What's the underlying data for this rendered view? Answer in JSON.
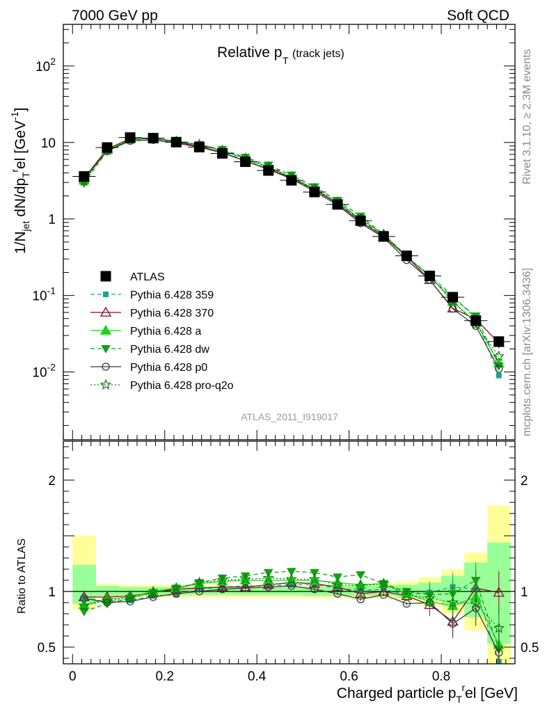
{
  "header": {
    "left": "7000 GeV pp",
    "right": "Soft QCD"
  },
  "plot_title_main": "Relative p",
  "plot_title_sub": "T",
  "plot_title_extra": "(track jets)",
  "watermark": "ATLAS_2011_I919017",
  "side_right_top": "Rivet 3.1.10, ≥ 2.3M events",
  "side_right_bottom": "mcplots.cern.ch [arXiv:1306.3436]",
  "ylabel_top": "1/N_jet dN/dp_T^rel [GeV^-1]",
  "ylabel_bottom": "Ratio to ATLAS",
  "xlabel": "Charged particle p_T^rel [GeV]",
  "colors": {
    "atlas": "#000000",
    "p359": "#1aa58c",
    "p370": "#7a1020",
    "pa": "#1cd41c",
    "pdw": "#12a012",
    "pp0": "#3a3a3a",
    "pq2o": "#0d7d0d",
    "band_yellow": "#ffff99",
    "band_green": "#99ff99"
  },
  "chart_data": {
    "type": "line",
    "x": [
      0.025,
      0.075,
      0.125,
      0.175,
      0.225,
      0.275,
      0.325,
      0.375,
      0.425,
      0.475,
      0.525,
      0.575,
      0.625,
      0.675,
      0.725,
      0.775,
      0.825,
      0.875,
      0.925
    ],
    "xlim": [
      -0.02,
      0.96
    ],
    "xticks": [
      "0",
      "0.2",
      "0.4",
      "0.6",
      "0.8"
    ],
    "top": {
      "yscale": "log",
      "ylim": [
        0.0013,
        350
      ],
      "yticks": [
        "10^-2",
        "10^-1",
        "1",
        "10",
        "10^2"
      ],
      "series": [
        {
          "name": "ATLAS",
          "key": "atlas",
          "values": [
            3.6,
            8.6,
            11.6,
            11.4,
            10.1,
            8.7,
            7.2,
            5.6,
            4.3,
            3.2,
            2.25,
            1.55,
            0.95,
            0.59,
            0.33,
            0.18,
            0.095,
            0.047,
            0.025
          ]
        },
        {
          "name": "Pythia 6.428 359",
          "key": "p359",
          "values": [
            3.3,
            7.8,
            10.7,
            10.9,
            9.9,
            8.9,
            7.4,
            5.9,
            4.5,
            3.35,
            2.38,
            1.6,
            0.97,
            0.6,
            0.32,
            0.185,
            0.099,
            0.05,
            0.009
          ]
        },
        {
          "name": "Pythia 6.428 370",
          "key": "p370",
          "values": [
            3.4,
            8.2,
            11.2,
            11.3,
            10.2,
            8.9,
            7.4,
            5.7,
            4.5,
            3.45,
            2.43,
            1.58,
            0.93,
            0.59,
            0.32,
            0.16,
            0.068,
            0.049,
            0.024
          ]
        },
        {
          "name": "Pythia 6.428 a",
          "key": "pa",
          "values": [
            3.2,
            8.0,
            11.0,
            11.4,
            10.4,
            9.3,
            7.8,
            6.15,
            4.75,
            3.5,
            2.48,
            1.67,
            1.0,
            0.63,
            0.32,
            0.18,
            0.083,
            0.045,
            0.013
          ]
        },
        {
          "name": "Pythia 6.428 dw",
          "key": "pdw",
          "values": [
            2.95,
            7.7,
            10.9,
            11.4,
            10.4,
            9.4,
            8.1,
            6.4,
            5.05,
            3.75,
            2.63,
            1.75,
            1.09,
            0.63,
            0.33,
            0.175,
            0.093,
            0.054,
            0.012
          ]
        },
        {
          "name": "Pythia 6.428 p0",
          "key": "pp0",
          "values": [
            3.4,
            7.7,
            10.5,
            10.8,
            9.8,
            8.7,
            7.3,
            5.75,
            4.45,
            3.35,
            2.3,
            1.52,
            0.88,
            0.57,
            0.29,
            0.16,
            0.067,
            0.04,
            0.011
          ]
        },
        {
          "name": "Pythia 6.428 pro-q2o",
          "key": "pq2o",
          "values": [
            3.1,
            7.9,
            10.9,
            11.3,
            10.3,
            9.4,
            7.9,
            6.2,
            4.8,
            3.55,
            2.5,
            1.64,
            1.0,
            0.63,
            0.32,
            0.18,
            0.085,
            0.042,
            0.016
          ]
        }
      ]
    },
    "bottom": {
      "yscale": "linear",
      "ylim": [
        0.35,
        2.35
      ],
      "yticks": [
        "0.5",
        "1",
        "2"
      ],
      "band_yellow": [
        [
          0.84,
          1.5
        ],
        [
          0.94,
          1.07
        ],
        [
          0.94,
          1.06
        ],
        [
          0.94,
          1.06
        ],
        [
          0.95,
          1.06
        ],
        [
          0.95,
          1.06
        ],
        [
          0.95,
          1.06
        ],
        [
          0.95,
          1.05
        ],
        [
          0.95,
          1.05
        ],
        [
          0.95,
          1.05
        ],
        [
          0.94,
          1.06
        ],
        [
          0.94,
          1.06
        ],
        [
          0.94,
          1.07
        ],
        [
          0.94,
          1.07
        ],
        [
          0.92,
          1.09
        ],
        [
          0.88,
          1.13
        ],
        [
          0.8,
          1.2
        ],
        [
          0.65,
          1.35
        ],
        [
          0.35,
          1.77
        ]
      ],
      "band_green": [
        [
          0.89,
          1.24
        ],
        [
          0.96,
          1.05
        ],
        [
          0.97,
          1.04
        ],
        [
          0.97,
          1.04
        ],
        [
          0.97,
          1.04
        ],
        [
          0.97,
          1.04
        ],
        [
          0.97,
          1.04
        ],
        [
          0.97,
          1.04
        ],
        [
          0.97,
          1.04
        ],
        [
          0.97,
          1.04
        ],
        [
          0.96,
          1.04
        ],
        [
          0.96,
          1.05
        ],
        [
          0.96,
          1.05
        ],
        [
          0.96,
          1.05
        ],
        [
          0.95,
          1.06
        ],
        [
          0.93,
          1.08
        ],
        [
          0.88,
          1.14
        ],
        [
          0.77,
          1.26
        ],
        [
          0.53,
          1.44
        ]
      ],
      "series": [
        {
          "key": "p359",
          "values": [
            0.94,
            0.91,
            0.92,
            0.96,
            0.97,
            1.02,
            1.04,
            1.05,
            1.05,
            1.06,
            1.06,
            1.03,
            1.01,
            1.02,
            0.97,
            0.99,
            1.04,
            1.02,
            0.37
          ]
        },
        {
          "key": "p370",
          "values": [
            0.95,
            0.95,
            0.96,
            0.99,
            1.02,
            1.03,
            1.04,
            1.04,
            1.06,
            1.08,
            1.07,
            1.04,
            0.98,
            1.0,
            0.96,
            0.88,
            0.73,
            1.03,
            0.99
          ]
        },
        {
          "key": "pa",
          "values": [
            0.88,
            0.93,
            0.95,
            1.0,
            1.03,
            1.07,
            1.09,
            1.1,
            1.1,
            1.1,
            1.1,
            1.08,
            1.06,
            1.07,
            0.98,
            0.91,
            0.87,
            0.95,
            0.52
          ]
        },
        {
          "key": "pdw",
          "values": [
            0.82,
            0.89,
            0.94,
            0.99,
            1.03,
            1.08,
            1.12,
            1.14,
            1.17,
            1.18,
            1.17,
            1.13,
            1.15,
            1.07,
            1.0,
            0.97,
            0.98,
            1.1,
            0.48
          ]
        },
        {
          "key": "pp0",
          "values": [
            0.94,
            0.9,
            0.91,
            0.95,
            0.98,
            1.0,
            1.02,
            1.03,
            1.04,
            1.05,
            1.02,
            0.98,
            0.93,
            0.97,
            0.89,
            0.9,
            0.71,
            0.85,
            0.45
          ]
        },
        {
          "key": "pq2o",
          "values": [
            0.87,
            0.92,
            0.94,
            0.99,
            1.03,
            1.08,
            1.1,
            1.11,
            1.12,
            1.11,
            1.11,
            1.06,
            1.05,
            1.07,
            0.97,
            0.94,
            0.9,
            0.89,
            0.67
          ]
        }
      ]
    }
  }
}
